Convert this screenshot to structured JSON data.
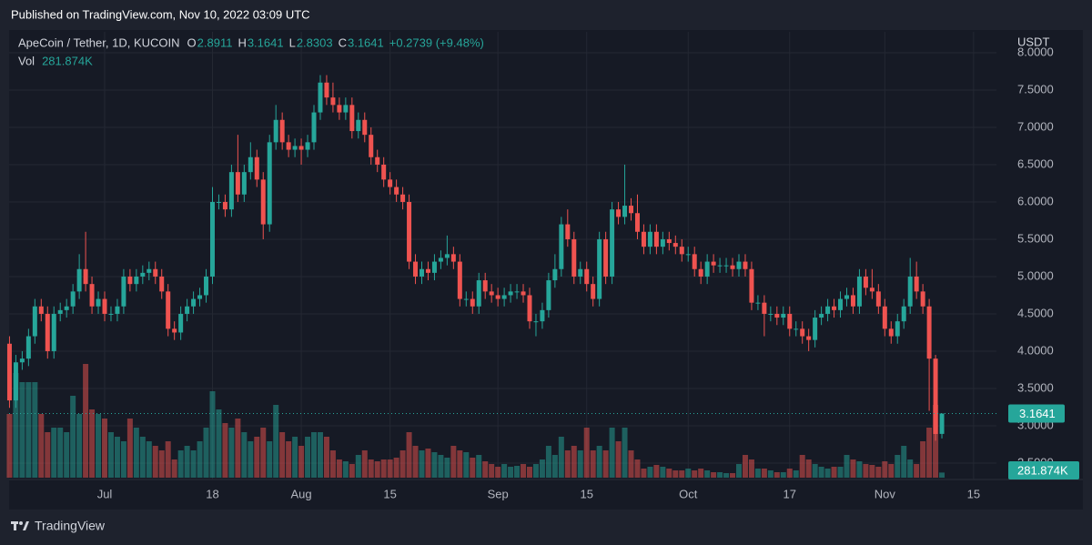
{
  "published": "Published on TradingView.com, Nov 10, 2022 03:09 UTC",
  "brand": "TradingView",
  "chart_data": {
    "type": "candlestick",
    "title": "ApeCoin / Tether, 1D, KUCOIN",
    "ohlc_labels": [
      "O",
      "H",
      "L",
      "C"
    ],
    "change": "+0.2739 (+9.48%)",
    "volume_label": "Vol",
    "last_volume_label": "281.874K",
    "currency": "USDT",
    "up_color": "#26a69a",
    "down_color": "#ef5350",
    "grid": true,
    "ylim": [
      2.28,
      8.28
    ],
    "yticks": [
      {
        "value": 2.5,
        "label": "2.5000"
      },
      {
        "value": 3,
        "label": "3.0000"
      },
      {
        "value": 3.5,
        "label": "3.5000"
      },
      {
        "value": 4,
        "label": "4.0000"
      },
      {
        "value": 4.5,
        "label": "4.5000"
      },
      {
        "value": 5,
        "label": "5.0000"
      },
      {
        "value": 5.5,
        "label": "5.5000"
      },
      {
        "value": 6,
        "label": "6.0000"
      },
      {
        "value": 6.5,
        "label": "6.5000"
      },
      {
        "value": 7,
        "label": "7.0000"
      },
      {
        "value": 7.5,
        "label": "7.5000"
      },
      {
        "value": 8,
        "label": "8.0000"
      }
    ],
    "categories": [
      null,
      null,
      null,
      null,
      null,
      null,
      null,
      null,
      null,
      null,
      null,
      null,
      null,
      null,
      null,
      "Jul",
      null,
      null,
      null,
      null,
      null,
      null,
      null,
      null,
      null,
      null,
      null,
      null,
      null,
      null,
      null,
      null,
      "18",
      null,
      null,
      null,
      null,
      null,
      null,
      null,
      null,
      null,
      null,
      null,
      null,
      null,
      "Aug",
      null,
      null,
      null,
      null,
      null,
      null,
      null,
      null,
      null,
      null,
      null,
      null,
      null,
      "15",
      null,
      null,
      null,
      null,
      null,
      null,
      null,
      null,
      null,
      null,
      null,
      null,
      null,
      null,
      null,
      null,
      "Sep",
      null,
      null,
      null,
      null,
      null,
      null,
      null,
      null,
      null,
      null,
      null,
      null,
      null,
      "15",
      null,
      null,
      null,
      null,
      null,
      null,
      null,
      null,
      null,
      null,
      null,
      null,
      null,
      null,
      null,
      "Oct",
      null,
      null,
      null,
      null,
      null,
      null,
      null,
      null,
      null,
      null,
      null,
      null,
      null,
      null,
      null,
      "17",
      null,
      null,
      null,
      null,
      null,
      null,
      null,
      null,
      null,
      null,
      null,
      null,
      null,
      null,
      "Nov",
      null,
      null,
      null,
      null,
      null,
      null,
      null,
      null,
      null,
      null,
      null,
      null,
      null,
      "15",
      null,
      null,
      null
    ],
    "open": [
      4.1,
      3.34,
      3.85,
      3.9,
      4.2,
      4.6,
      4.5,
      4.0,
      4.5,
      4.55,
      4.6,
      4.8,
      5.1,
      4.9,
      4.6,
      4.7,
      4.5,
      4.5,
      4.6,
      5.0,
      4.9,
      5.0,
      5.05,
      5.1,
      5.0,
      4.8,
      4.3,
      4.25,
      4.5,
      4.6,
      4.7,
      4.75,
      5.0,
      6.0,
      6.0,
      5.9,
      6.4,
      6.1,
      6.4,
      6.6,
      6.3,
      5.7,
      6.8,
      7.1,
      6.8,
      6.7,
      6.75,
      6.7,
      6.8,
      7.2,
      7.6,
      7.4,
      7.3,
      7.2,
      7.3,
      6.95,
      7.1,
      6.9,
      6.6,
      6.5,
      6.3,
      6.2,
      6.1,
      6.0,
      5.2,
      5.0,
      5.1,
      5.05,
      5.2,
      5.25,
      5.3,
      5.2,
      4.7,
      4.7,
      4.6,
      4.95,
      4.8,
      4.75,
      4.7,
      4.75,
      4.8,
      4.8,
      4.75,
      4.4,
      4.4,
      4.55,
      4.95,
      5.1,
      5.7,
      5.5,
      5.0,
      5.1,
      4.9,
      4.7,
      5.5,
      5.0,
      5.9,
      5.8,
      5.95,
      5.85,
      5.6,
      5.4,
      5.6,
      5.4,
      5.5,
      5.45,
      5.4,
      5.3,
      5.3,
      5.1,
      5.0,
      5.2,
      5.15,
      5.15,
      5.15,
      5.1,
      5.2,
      5.1,
      4.65,
      4.65,
      4.5,
      4.5,
      4.45,
      4.5,
      4.3,
      4.3,
      4.2,
      4.15,
      4.45,
      4.5,
      4.6,
      4.55,
      4.7,
      4.75,
      4.6,
      5.0,
      4.85,
      4.8,
      4.6,
      4.3,
      4.2,
      4.4,
      4.6,
      5.0,
      4.8,
      4.6,
      3.9,
      2.8911,
      null,
      null,
      null,
      null,
      null,
      null,
      null,
      null
    ],
    "high": [
      4.2,
      3.95,
      4.0,
      4.3,
      4.7,
      4.7,
      4.6,
      4.6,
      4.65,
      4.7,
      4.9,
      5.3,
      5.6,
      5.0,
      4.8,
      4.8,
      4.6,
      4.7,
      5.1,
      5.1,
      5.1,
      5.15,
      5.2,
      5.2,
      5.1,
      4.9,
      4.4,
      4.6,
      4.7,
      4.8,
      4.85,
      5.1,
      6.2,
      6.1,
      6.1,
      6.5,
      6.9,
      6.5,
      6.8,
      6.7,
      6.4,
      6.9,
      7.3,
      7.2,
      6.9,
      6.85,
      6.85,
      6.9,
      7.3,
      7.7,
      7.7,
      7.6,
      7.4,
      7.4,
      7.4,
      7.2,
      7.2,
      7.0,
      6.7,
      6.6,
      6.4,
      6.3,
      6.2,
      6.1,
      5.3,
      5.2,
      5.2,
      5.3,
      5.35,
      5.55,
      5.4,
      5.3,
      4.8,
      4.8,
      5.05,
      5.05,
      4.9,
      4.85,
      4.85,
      4.9,
      4.9,
      4.9,
      4.85,
      4.5,
      4.65,
      5.05,
      5.3,
      5.8,
      5.9,
      5.6,
      5.2,
      5.2,
      5.0,
      5.6,
      5.6,
      6.0,
      6.0,
      6.5,
      6.05,
      6.1,
      5.7,
      5.7,
      5.7,
      5.6,
      5.6,
      5.55,
      5.5,
      5.4,
      5.4,
      5.2,
      5.3,
      5.3,
      5.25,
      5.25,
      5.25,
      5.3,
      5.3,
      5.2,
      4.75,
      4.75,
      4.6,
      4.6,
      4.6,
      4.6,
      4.4,
      4.4,
      4.3,
      4.55,
      4.6,
      4.7,
      4.7,
      4.8,
      4.85,
      4.85,
      5.1,
      5.1,
      5.1,
      4.9,
      4.7,
      4.4,
      4.5,
      4.7,
      5.25,
      5.2,
      4.9,
      4.7,
      3.95,
      3.1641,
      null,
      null,
      null,
      null,
      null,
      null,
      null,
      null
    ],
    "low": [
      3.24,
      3.24,
      3.75,
      3.8,
      4.1,
      4.4,
      3.9,
      3.9,
      4.4,
      4.45,
      4.5,
      4.7,
      4.8,
      4.5,
      4.5,
      4.4,
      4.4,
      4.4,
      4.5,
      4.8,
      4.8,
      4.9,
      4.95,
      4.9,
      4.7,
      4.2,
      4.15,
      4.15,
      4.4,
      4.5,
      4.6,
      4.65,
      4.9,
      5.9,
      5.8,
      5.8,
      6.0,
      6.0,
      6.3,
      6.2,
      5.5,
      5.6,
      6.7,
      6.7,
      6.6,
      6.6,
      6.5,
      6.6,
      6.7,
      7.1,
      7.3,
      7.2,
      7.1,
      7.1,
      6.85,
      6.85,
      6.8,
      6.5,
      6.4,
      6.2,
      6.1,
      6.0,
      5.9,
      5.1,
      4.9,
      4.9,
      4.95,
      4.95,
      5.1,
      5.15,
      5.1,
      4.6,
      4.6,
      4.5,
      4.5,
      4.7,
      4.65,
      4.6,
      4.6,
      4.65,
      4.7,
      4.65,
      4.3,
      4.2,
      4.3,
      4.45,
      4.85,
      5.0,
      5.4,
      4.9,
      4.9,
      4.8,
      4.6,
      4.6,
      4.9,
      4.9,
      5.7,
      5.7,
      5.75,
      5.5,
      5.3,
      5.3,
      5.3,
      5.3,
      5.35,
      5.3,
      5.2,
      5.2,
      5.0,
      4.9,
      4.9,
      5.05,
      5.05,
      5.05,
      5.0,
      5.0,
      5.0,
      4.55,
      4.55,
      4.2,
      4.4,
      4.35,
      4.35,
      4.2,
      4.2,
      4.1,
      4.0,
      4.05,
      4.35,
      4.4,
      4.45,
      4.45,
      4.6,
      4.5,
      4.5,
      4.75,
      4.7,
      4.5,
      4.2,
      4.1,
      4.1,
      4.3,
      4.5,
      4.7,
      4.5,
      3.2,
      2.8,
      2.8303,
      null,
      null,
      null,
      null,
      null,
      null,
      null,
      null
    ],
    "close": [
      3.34,
      3.85,
      3.9,
      4.2,
      4.6,
      4.5,
      4.0,
      4.5,
      4.55,
      4.6,
      4.8,
      5.1,
      4.9,
      4.6,
      4.7,
      4.5,
      4.5,
      4.6,
      5.0,
      4.9,
      5.0,
      5.05,
      5.1,
      5.0,
      4.8,
      4.3,
      4.25,
      4.5,
      4.6,
      4.7,
      4.75,
      5.0,
      6.0,
      6.0,
      5.9,
      6.4,
      6.1,
      6.4,
      6.6,
      6.3,
      5.7,
      6.8,
      7.1,
      6.8,
      6.7,
      6.75,
      6.7,
      6.8,
      7.2,
      7.6,
      7.4,
      7.3,
      7.2,
      7.3,
      6.95,
      7.1,
      6.9,
      6.6,
      6.5,
      6.3,
      6.2,
      6.1,
      6.0,
      5.2,
      5.0,
      5.1,
      5.05,
      5.2,
      5.25,
      5.3,
      5.2,
      4.7,
      4.7,
      4.6,
      4.95,
      4.8,
      4.75,
      4.7,
      4.75,
      4.8,
      4.8,
      4.75,
      4.4,
      4.4,
      4.55,
      4.95,
      5.1,
      5.7,
      5.5,
      5.0,
      5.1,
      4.9,
      4.7,
      5.5,
      5.0,
      5.9,
      5.8,
      5.95,
      5.85,
      5.6,
      5.4,
      5.6,
      5.4,
      5.5,
      5.45,
      5.4,
      5.3,
      5.3,
      5.1,
      5.0,
      5.2,
      5.15,
      5.15,
      5.15,
      5.1,
      5.2,
      5.1,
      4.65,
      4.65,
      4.5,
      4.5,
      4.45,
      4.5,
      4.3,
      4.3,
      4.2,
      4.15,
      4.45,
      4.5,
      4.6,
      4.55,
      4.7,
      4.75,
      4.6,
      5.0,
      4.85,
      4.8,
      4.6,
      4.3,
      4.2,
      4.4,
      4.6,
      5.0,
      4.8,
      4.6,
      3.9,
      2.89,
      3.1641,
      null,
      null,
      null,
      null,
      null,
      null,
      null,
      null
    ],
    "volume": [
      3500,
      5750,
      5250,
      5250,
      5250,
      3500,
      2500,
      2750,
      2750,
      2500,
      4500,
      3500,
      6250,
      3750,
      3500,
      3250,
      2500,
      2250,
      2000,
      3250,
      2750,
      2250,
      2000,
      1750,
      1500,
      2000,
      1000,
      1500,
      1750,
      1500,
      2000,
      2750,
      4750,
      3750,
      3000,
      2750,
      3250,
      2500,
      2000,
      2250,
      2750,
      2000,
      4000,
      2500,
      2000,
      2250,
      1750,
      2250,
      2500,
      2500,
      2250,
      1500,
      1000,
      900,
      750,
      1250,
      1500,
      1000,
      900,
      1000,
      1000,
      1100,
      1500,
      2500,
      1750,
      1500,
      1600,
      1400,
      1250,
      1100,
      1750,
      1500,
      1400,
      1100,
      1250,
      900,
      750,
      600,
      750,
      600,
      650,
      750,
      600,
      750,
      1000,
      1750,
      1250,
      2250,
      1500,
      1750,
      1500,
      2750,
      1500,
      1750,
      1500,
      2750,
      2000,
      2750,
      1500,
      1000,
      500,
      600,
      700,
      600,
      500,
      400,
      400,
      500,
      400,
      500,
      400,
      300,
      300,
      250,
      250,
      750,
      1250,
      1000,
      500,
      500,
      400,
      300,
      300,
      500,
      400,
      1250,
      1000,
      750,
      600,
      500,
      600,
      600,
      1250,
      1000,
      900,
      750,
      700,
      600,
      900,
      750,
      1250,
      1750,
      1000,
      750,
      2000,
      2750,
      4000,
      281.874,
      null,
      null,
      null,
      null,
      null,
      null,
      null,
      null
    ]
  }
}
